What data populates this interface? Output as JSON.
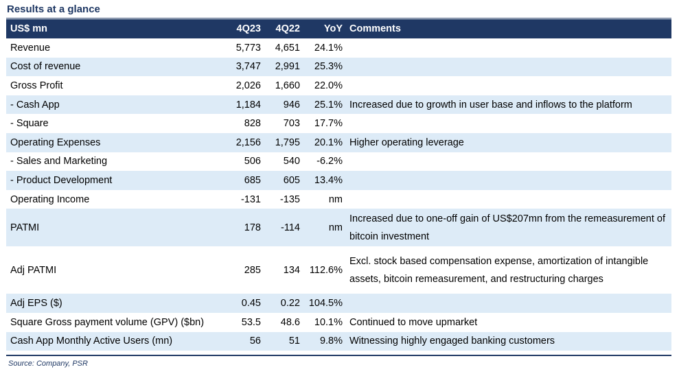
{
  "title": "Results at a glance",
  "header": {
    "label": "US$ mn",
    "q4_23": "4Q23",
    "q4_22": "4Q22",
    "yoy": "YoY",
    "comments": "Comments"
  },
  "rows": [
    {
      "label": "Revenue",
      "q4_23": "5,773",
      "q4_22": "4,651",
      "yoy": "24.1%",
      "comment": ""
    },
    {
      "label": "Cost of revenue",
      "q4_23": "3,747",
      "q4_22": "2,991",
      "yoy": "25.3%",
      "comment": ""
    },
    {
      "label": "Gross Profit",
      "q4_23": "2,026",
      "q4_22": "1,660",
      "yoy": "22.0%",
      "comment": ""
    },
    {
      "label": " - Cash App",
      "q4_23": "1,184",
      "q4_22": "946",
      "yoy": "25.1%",
      "comment": "Increased due to growth in user base and inflows to the platform"
    },
    {
      "label": " - Square",
      "q4_23": "828",
      "q4_22": "703",
      "yoy": "17.7%",
      "comment": ""
    },
    {
      "label": "Operating Expenses",
      "q4_23": "2,156",
      "q4_22": "1,795",
      "yoy": "20.1%",
      "comment": "Higher operating leverage"
    },
    {
      "label": " - Sales and Marketing",
      "q4_23": "506",
      "q4_22": "540",
      "yoy": "-6.2%",
      "comment": ""
    },
    {
      "label": " - Product Development",
      "q4_23": "685",
      "q4_22": "605",
      "yoy": "13.4%",
      "comment": ""
    },
    {
      "label": "Operating Income",
      "q4_23": "-131",
      "q4_22": "-135",
      "yoy": "nm",
      "comment": ""
    },
    {
      "label": "PATMI",
      "q4_23": "178",
      "q4_22": "-114",
      "yoy": "nm",
      "comment": "Increased due to one-off gain of US$207mn from the remeasurement of bitcoin investment"
    },
    {
      "label": "Adj PATMI",
      "q4_23": "285",
      "q4_22": "134",
      "yoy": "112.6%",
      "comment": "Excl. stock based compensation expense, amortization of intangible assets, bitcoin remeasurement, and restructuring charges"
    },
    {
      "label": "Adj EPS ($)",
      "q4_23": "0.45",
      "q4_22": "0.22",
      "yoy": "104.5%",
      "comment": ""
    },
    {
      "label": "Square Gross payment volume (GPV) ($bn)",
      "q4_23": "53.5",
      "q4_22": "48.6",
      "yoy": "10.1%",
      "comment": "Continued to move upmarket"
    },
    {
      "label": "Cash App Monthly Active Users (mn)",
      "q4_23": "56",
      "q4_22": "51",
      "yoy": "9.8%",
      "comment": "Witnessing highly engaged banking customers"
    }
  ],
  "source": "Source: Company, PSR",
  "colors": {
    "header_bg": "#1f3864",
    "row_shade": "#ddebf7"
  }
}
